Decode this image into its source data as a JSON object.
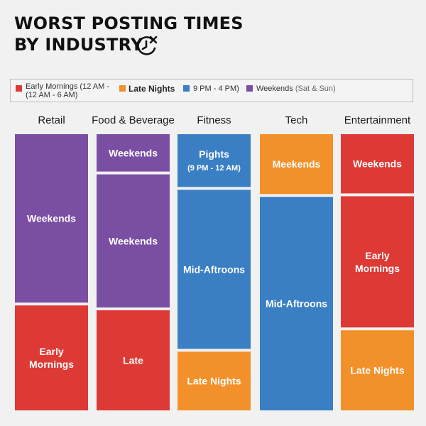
{
  "title": {
    "line1": "WORST POSTING TIMES",
    "line2": "BY INDUSTRY"
  },
  "icon": "clock-x-icon",
  "legend": [
    {
      "label": "Early Mornings (12 AM - (12 AM - 6 AM)",
      "line1": "Early Mornings (12 AM -",
      "line2": "(12 AM - 6 AM)",
      "color": "#de3a35"
    },
    {
      "label": "Late Nights",
      "color": "#f2912a"
    },
    {
      "label": "9 PM - 4 PM)",
      "color": "#3a7fc4"
    },
    {
      "label": "Weekends (Sat & Sun)",
      "main": "Weekends",
      "muted": "(Sat & Sun)",
      "color": "#7a4fa3"
    }
  ],
  "colors": {
    "red": "#de3a35",
    "orange": "#f2912a",
    "blue": "#3a7fc4",
    "purple": "#7a4fa3",
    "background": "#f1f1f1"
  },
  "chart_data": {
    "type": "table",
    "note_unit": "share of column (fraction)",
    "categories": [
      "Retail",
      "Food & Beverage",
      "Fitness",
      "Tech",
      "Entertainment"
    ],
    "columns": [
      {
        "category": "Retail",
        "segments": [
          {
            "label": "Weekends",
            "color": "purple",
            "share": 0.616
          },
          {
            "label": "Early Mornings",
            "color": "red",
            "share": 0.384
          }
        ]
      },
      {
        "category": "Food & Beverage",
        "segments": [
          {
            "label": "Weekends",
            "color": "purple",
            "share": 0.138
          },
          {
            "label": "Weekends",
            "color": "purple",
            "share": 0.492
          },
          {
            "label": "Late",
            "color": "red",
            "share": 0.37
          }
        ]
      },
      {
        "category": "Fitness",
        "segments": [
          {
            "label": "Pights",
            "sublabel": "(9 PM - 12 AM)",
            "color": "blue",
            "share": 0.195
          },
          {
            "label": "Mid-Aftroons",
            "color": "blue",
            "share": 0.588
          },
          {
            "label": "Late Nights",
            "color": "orange",
            "share": 0.217
          }
        ]
      },
      {
        "category": "Tech",
        "segments": [
          {
            "label": "Meekends",
            "color": "orange",
            "share": 0.219
          },
          {
            "label": "Mid-Aftroons",
            "color": "blue",
            "share": 0.781
          }
        ]
      },
      {
        "category": "Entertainment",
        "segments": [
          {
            "label": "Weekends",
            "color": "red",
            "share": 0.219
          },
          {
            "label": "Early Mornings",
            "color": "red",
            "share": 0.485
          },
          {
            "label": "Late Nights",
            "color": "orange",
            "share": 0.296
          }
        ]
      }
    ]
  }
}
